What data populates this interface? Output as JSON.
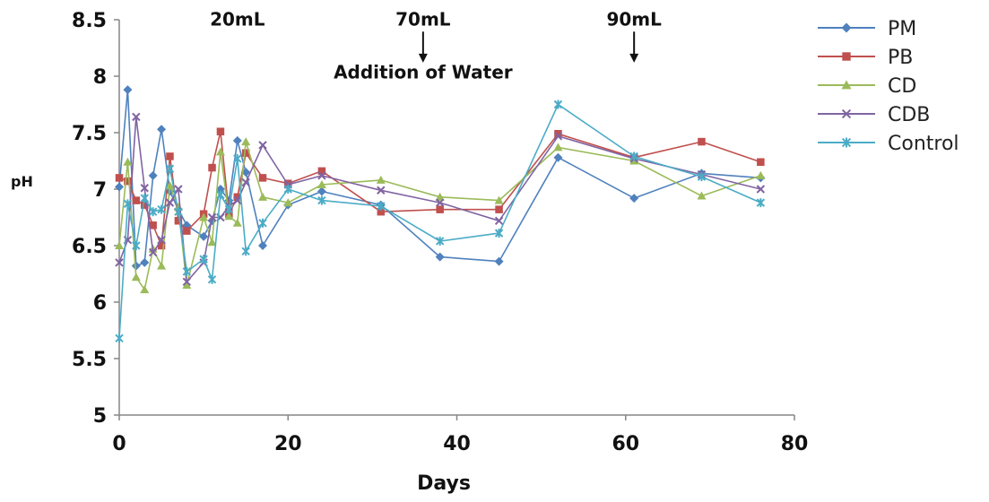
{
  "chart_data": {
    "type": "line",
    "xlabel": "Days",
    "ylabel": "pH",
    "xlim": [
      0,
      80
    ],
    "ylim": [
      5,
      8.5
    ],
    "x_ticks": [
      "0",
      "20",
      "40",
      "60",
      "80"
    ],
    "y_ticks": [
      "5",
      "5.5",
      "6",
      "6.5",
      "7",
      "7.5",
      "8",
      "8.5"
    ],
    "grid": false,
    "legend": "right",
    "annotations": [
      {
        "text": "20mL",
        "x": 14,
        "y": 8.45,
        "arrow": false
      },
      {
        "text": "70mL",
        "x": 36,
        "y": 8.45,
        "arrow": true,
        "arrow_to": 8.12
      },
      {
        "text": "Addition of Water",
        "x": 36,
        "y": 7.98,
        "arrow": false
      },
      {
        "text": "90mL",
        "x": 61,
        "y": 8.45,
        "arrow": true,
        "arrow_to": 8.12
      }
    ],
    "series": [
      {
        "name": "PM",
        "color": "#4f81bd",
        "marker": "diamond",
        "points": [
          [
            0,
            7.02
          ],
          [
            1,
            7.88
          ],
          [
            2,
            6.32
          ],
          [
            3,
            6.35
          ],
          [
            4,
            7.12
          ],
          [
            5,
            7.53
          ],
          [
            6,
            6.98
          ],
          [
            7,
            6.82
          ],
          [
            8,
            6.68
          ],
          [
            10,
            6.58
          ],
          [
            11,
            6.72
          ],
          [
            12,
            7.0
          ],
          [
            13,
            6.9
          ],
          [
            14,
            7.43
          ],
          [
            15,
            7.15
          ],
          [
            17,
            6.5
          ],
          [
            20,
            6.86
          ],
          [
            24,
            6.98
          ],
          [
            31,
            6.86
          ],
          [
            38,
            6.4
          ],
          [
            45,
            6.36
          ],
          [
            52,
            7.28
          ],
          [
            61,
            6.92
          ],
          [
            69,
            7.14
          ],
          [
            76,
            7.1
          ]
        ]
      },
      {
        "name": "PB",
        "color": "#c0504d",
        "marker": "square",
        "points": [
          [
            0,
            7.1
          ],
          [
            1,
            7.07
          ],
          [
            2,
            6.9
          ],
          [
            3,
            6.86
          ],
          [
            4,
            6.68
          ],
          [
            5,
            6.5
          ],
          [
            6,
            7.29
          ],
          [
            7,
            6.72
          ],
          [
            8,
            6.63
          ],
          [
            10,
            6.78
          ],
          [
            11,
            7.19
          ],
          [
            12,
            7.51
          ],
          [
            13,
            6.78
          ],
          [
            14,
            6.93
          ],
          [
            15,
            7.32
          ],
          [
            17,
            7.1
          ],
          [
            20,
            7.05
          ],
          [
            24,
            7.16
          ],
          [
            31,
            6.8
          ],
          [
            38,
            6.82
          ],
          [
            45,
            6.82
          ],
          [
            52,
            7.49
          ],
          [
            61,
            7.28
          ],
          [
            69,
            7.42
          ],
          [
            76,
            7.24
          ]
        ]
      },
      {
        "name": "CD",
        "color": "#9bbb59",
        "marker": "triangle",
        "points": [
          [
            0,
            6.5
          ],
          [
            1,
            7.24
          ],
          [
            2,
            6.22
          ],
          [
            3,
            6.11
          ],
          [
            4,
            6.47
          ],
          [
            5,
            6.32
          ],
          [
            6,
            7.03
          ],
          [
            7,
            6.84
          ],
          [
            8,
            6.15
          ],
          [
            10,
            6.75
          ],
          [
            11,
            6.53
          ],
          [
            12,
            7.33
          ],
          [
            13,
            6.76
          ],
          [
            14,
            6.7
          ],
          [
            15,
            7.42
          ],
          [
            17,
            6.93
          ],
          [
            20,
            6.88
          ],
          [
            24,
            7.04
          ],
          [
            31,
            7.08
          ],
          [
            38,
            6.93
          ],
          [
            45,
            6.9
          ],
          [
            52,
            7.37
          ],
          [
            61,
            7.25
          ],
          [
            69,
            6.94
          ],
          [
            76,
            7.12
          ]
        ]
      },
      {
        "name": "CDB",
        "color": "#8064a2",
        "marker": "x",
        "points": [
          [
            0,
            6.35
          ],
          [
            1,
            6.55
          ],
          [
            2,
            7.64
          ],
          [
            3,
            7.01
          ],
          [
            4,
            6.44
          ],
          [
            5,
            6.55
          ],
          [
            6,
            6.88
          ],
          [
            7,
            7.0
          ],
          [
            8,
            6.18
          ],
          [
            10,
            6.35
          ],
          [
            11,
            6.75
          ],
          [
            12,
            6.75
          ],
          [
            13,
            6.85
          ],
          [
            14,
            6.9
          ],
          [
            15,
            7.06
          ],
          [
            17,
            7.39
          ],
          [
            20,
            7.04
          ],
          [
            24,
            7.12
          ],
          [
            31,
            6.99
          ],
          [
            38,
            6.88
          ],
          [
            45,
            6.72
          ],
          [
            52,
            7.47
          ],
          [
            61,
            7.27
          ],
          [
            69,
            7.13
          ],
          [
            76,
            7.0
          ]
        ]
      },
      {
        "name": "Control",
        "color": "#4bacc6",
        "marker": "star",
        "points": [
          [
            0,
            5.68
          ],
          [
            1,
            6.87
          ],
          [
            2,
            6.5
          ],
          [
            3,
            6.92
          ],
          [
            4,
            6.8
          ],
          [
            5,
            6.82
          ],
          [
            6,
            7.18
          ],
          [
            7,
            6.8
          ],
          [
            8,
            6.27
          ],
          [
            10,
            6.38
          ],
          [
            11,
            6.2
          ],
          [
            12,
            6.95
          ],
          [
            13,
            6.82
          ],
          [
            14,
            7.27
          ],
          [
            15,
            6.45
          ],
          [
            17,
            6.7
          ],
          [
            20,
            7.0
          ],
          [
            24,
            6.9
          ],
          [
            31,
            6.85
          ],
          [
            38,
            6.54
          ],
          [
            45,
            6.61
          ],
          [
            52,
            7.75
          ],
          [
            61,
            7.29
          ],
          [
            69,
            7.11
          ],
          [
            76,
            6.88
          ]
        ]
      }
    ]
  }
}
